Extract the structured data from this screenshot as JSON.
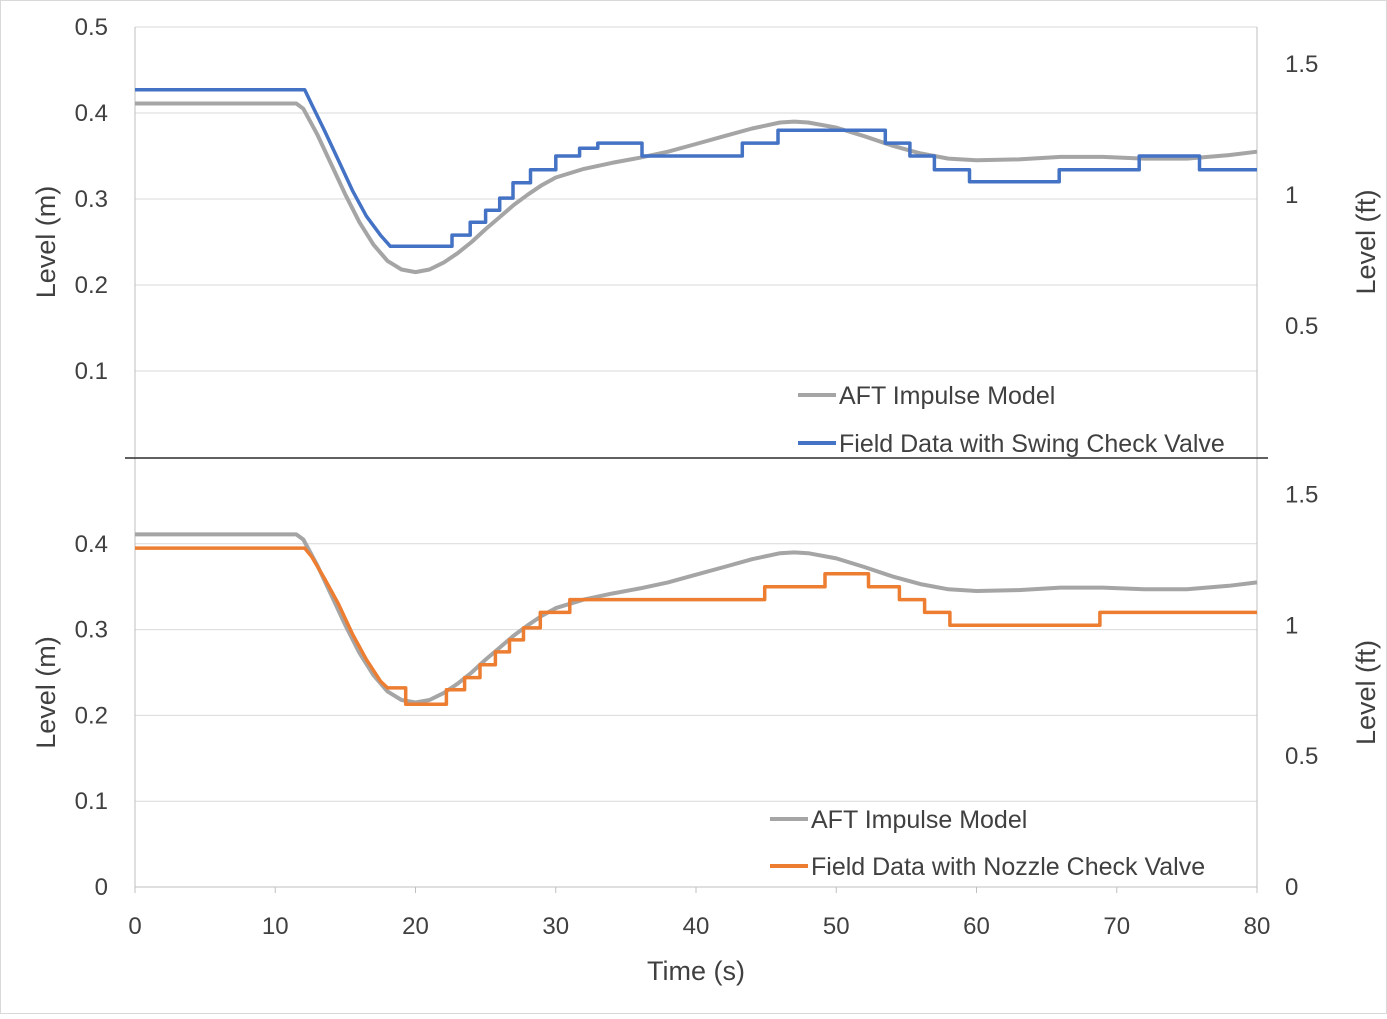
{
  "chart_data": [
    {
      "type": "line",
      "xlim": [
        0,
        80
      ],
      "ylim": [
        0,
        0.5
      ],
      "y2lim_ft": [
        0,
        1.6404
      ],
      "ylabel": "Level (m)",
      "y2label": "Level (ft)",
      "yticks": [
        "0.1",
        "0.2",
        "0.3",
        "0.4",
        "0.5"
      ],
      "ytick_values": [
        0.1,
        0.2,
        0.3,
        0.4,
        0.5
      ],
      "y2ticks": [
        "0.5",
        "1",
        "1.5"
      ],
      "y2tick_values": [
        0.5,
        1,
        1.5
      ],
      "grid": true,
      "legend": "bottom-right",
      "series": [
        {
          "name": "AFT Impulse Model",
          "color": "#a5a5a5",
          "points": [
            [
              0,
              0.411
            ],
            [
              11.5,
              0.411
            ],
            [
              12,
              0.405
            ],
            [
              13,
              0.375
            ],
            [
              14,
              0.34
            ],
            [
              15,
              0.305
            ],
            [
              16,
              0.273
            ],
            [
              17,
              0.247
            ],
            [
              18,
              0.228
            ],
            [
              19,
              0.218
            ],
            [
              20,
              0.215
            ],
            [
              21,
              0.218
            ],
            [
              22,
              0.226
            ],
            [
              23,
              0.237
            ],
            [
              24,
              0.25
            ],
            [
              25,
              0.265
            ],
            [
              26,
              0.279
            ],
            [
              27,
              0.293
            ],
            [
              28,
              0.305
            ],
            [
              29,
              0.316
            ],
            [
              30,
              0.325
            ],
            [
              32,
              0.335
            ],
            [
              34,
              0.342
            ],
            [
              36,
              0.348
            ],
            [
              38,
              0.355
            ],
            [
              40,
              0.364
            ],
            [
              42,
              0.373
            ],
            [
              44,
              0.382
            ],
            [
              46,
              0.389
            ],
            [
              47,
              0.39
            ],
            [
              48,
              0.389
            ],
            [
              50,
              0.383
            ],
            [
              52,
              0.373
            ],
            [
              54,
              0.362
            ],
            [
              56,
              0.353
            ],
            [
              58,
              0.347
            ],
            [
              60,
              0.345
            ],
            [
              63,
              0.346
            ],
            [
              66,
              0.349
            ],
            [
              69,
              0.349
            ],
            [
              72,
              0.347
            ],
            [
              75,
              0.347
            ],
            [
              78,
              0.351
            ],
            [
              80,
              0.355
            ]
          ]
        },
        {
          "name": "Field Data with Swing Check Valve",
          "color": "#4472c4",
          "points": [
            [
              0,
              0.427
            ],
            [
              12.1,
              0.427
            ],
            [
              12.6,
              0.41
            ],
            [
              13.5,
              0.38
            ],
            [
              14.5,
              0.345
            ],
            [
              15.5,
              0.31
            ],
            [
              16.5,
              0.28
            ],
            [
              17.5,
              0.258
            ],
            [
              18.2,
              0.245
            ],
            [
              22.6,
              0.245
            ],
            [
              22.6,
              0.258
            ],
            [
              23.9,
              0.258
            ],
            [
              23.9,
              0.273
            ],
            [
              25,
              0.273
            ],
            [
              25,
              0.287
            ],
            [
              26,
              0.287
            ],
            [
              26,
              0.301
            ],
            [
              26.95,
              0.301
            ],
            [
              26.95,
              0.319
            ],
            [
              28.2,
              0.319
            ],
            [
              28.2,
              0.334
            ],
            [
              30,
              0.334
            ],
            [
              30,
              0.35
            ],
            [
              31.7,
              0.35
            ],
            [
              31.7,
              0.359
            ],
            [
              33,
              0.359
            ],
            [
              33,
              0.365
            ],
            [
              36.15,
              0.365
            ],
            [
              36.15,
              0.35
            ],
            [
              43.3,
              0.35
            ],
            [
              43.3,
              0.365
            ],
            [
              45.85,
              0.365
            ],
            [
              45.85,
              0.38
            ],
            [
              53.5,
              0.38
            ],
            [
              53.5,
              0.365
            ],
            [
              55.25,
              0.365
            ],
            [
              55.25,
              0.35
            ],
            [
              57,
              0.35
            ],
            [
              57,
              0.334
            ],
            [
              59.5,
              0.334
            ],
            [
              59.5,
              0.32
            ],
            [
              65.9,
              0.32
            ],
            [
              65.9,
              0.334
            ],
            [
              71.6,
              0.334
            ],
            [
              71.6,
              0.35
            ],
            [
              75.9,
              0.35
            ],
            [
              75.9,
              0.334
            ],
            [
              80,
              0.334
            ]
          ]
        }
      ]
    },
    {
      "type": "line",
      "xlim": [
        0,
        80
      ],
      "ylim": [
        0,
        0.5
      ],
      "y2lim_ft": [
        0,
        1.6404
      ],
      "xlabel": "Time (s)",
      "ylabel": "Level (m)",
      "y2label": "Level (ft)",
      "xticks": [
        "0",
        "10",
        "20",
        "30",
        "40",
        "50",
        "60",
        "70",
        "80"
      ],
      "xtick_values": [
        0,
        10,
        20,
        30,
        40,
        50,
        60,
        70,
        80
      ],
      "yticks": [
        "0",
        "0.1",
        "0.2",
        "0.3",
        "0.4"
      ],
      "ytick_values": [
        0,
        0.1,
        0.2,
        0.3,
        0.4
      ],
      "y2ticks": [
        "0",
        "0.5",
        "1",
        "1.5"
      ],
      "y2tick_values": [
        0,
        0.5,
        1,
        1.5
      ],
      "grid": true,
      "legend": "bottom-right",
      "series": [
        {
          "name": "AFT Impulse Model",
          "color": "#a5a5a5",
          "points": [
            [
              0,
              0.411
            ],
            [
              11.5,
              0.411
            ],
            [
              12,
              0.405
            ],
            [
              13,
              0.375
            ],
            [
              14,
              0.34
            ],
            [
              15,
              0.305
            ],
            [
              16,
              0.273
            ],
            [
              17,
              0.247
            ],
            [
              18,
              0.228
            ],
            [
              19,
              0.218
            ],
            [
              20,
              0.215
            ],
            [
              21,
              0.218
            ],
            [
              22,
              0.226
            ],
            [
              23,
              0.237
            ],
            [
              24,
              0.25
            ],
            [
              25,
              0.265
            ],
            [
              26,
              0.279
            ],
            [
              27,
              0.293
            ],
            [
              28,
              0.305
            ],
            [
              29,
              0.316
            ],
            [
              30,
              0.325
            ],
            [
              32,
              0.335
            ],
            [
              34,
              0.342
            ],
            [
              36,
              0.348
            ],
            [
              38,
              0.355
            ],
            [
              40,
              0.364
            ],
            [
              42,
              0.373
            ],
            [
              44,
              0.382
            ],
            [
              46,
              0.389
            ],
            [
              47,
              0.39
            ],
            [
              48,
              0.389
            ],
            [
              50,
              0.383
            ],
            [
              52,
              0.373
            ],
            [
              54,
              0.362
            ],
            [
              56,
              0.353
            ],
            [
              58,
              0.347
            ],
            [
              60,
              0.345
            ],
            [
              63,
              0.346
            ],
            [
              66,
              0.349
            ],
            [
              69,
              0.349
            ],
            [
              72,
              0.347
            ],
            [
              75,
              0.347
            ],
            [
              78,
              0.351
            ],
            [
              80,
              0.355
            ]
          ]
        },
        {
          "name": "Field Data with Nozzle Check Valve",
          "color": "#ed7d31",
          "points": [
            [
              0,
              0.395
            ],
            [
              12.1,
              0.395
            ],
            [
              12.6,
              0.385
            ],
            [
              13.5,
              0.36
            ],
            [
              14.5,
              0.33
            ],
            [
              15.5,
              0.295
            ],
            [
              16.5,
              0.265
            ],
            [
              17.5,
              0.24
            ],
            [
              18,
              0.232
            ],
            [
              19.3,
              0.232
            ],
            [
              19.3,
              0.213
            ],
            [
              22.2,
              0.213
            ],
            [
              22.2,
              0.23
            ],
            [
              23.5,
              0.23
            ],
            [
              23.5,
              0.244
            ],
            [
              24.6,
              0.244
            ],
            [
              24.6,
              0.259
            ],
            [
              25.7,
              0.259
            ],
            [
              25.7,
              0.274
            ],
            [
              26.7,
              0.274
            ],
            [
              26.7,
              0.288
            ],
            [
              27.7,
              0.288
            ],
            [
              27.7,
              0.302
            ],
            [
              28.9,
              0.302
            ],
            [
              28.9,
              0.32
            ],
            [
              31,
              0.32
            ],
            [
              31,
              0.335
            ],
            [
              44.9,
              0.335
            ],
            [
              44.9,
              0.35
            ],
            [
              49.2,
              0.35
            ],
            [
              49.2,
              0.365
            ],
            [
              52.3,
              0.365
            ],
            [
              52.3,
              0.35
            ],
            [
              54.5,
              0.35
            ],
            [
              54.5,
              0.335
            ],
            [
              56.3,
              0.335
            ],
            [
              56.3,
              0.32
            ],
            [
              58.1,
              0.32
            ],
            [
              58.1,
              0.305
            ],
            [
              68.8,
              0.305
            ],
            [
              68.8,
              0.32
            ],
            [
              80,
              0.32
            ]
          ]
        }
      ]
    }
  ]
}
